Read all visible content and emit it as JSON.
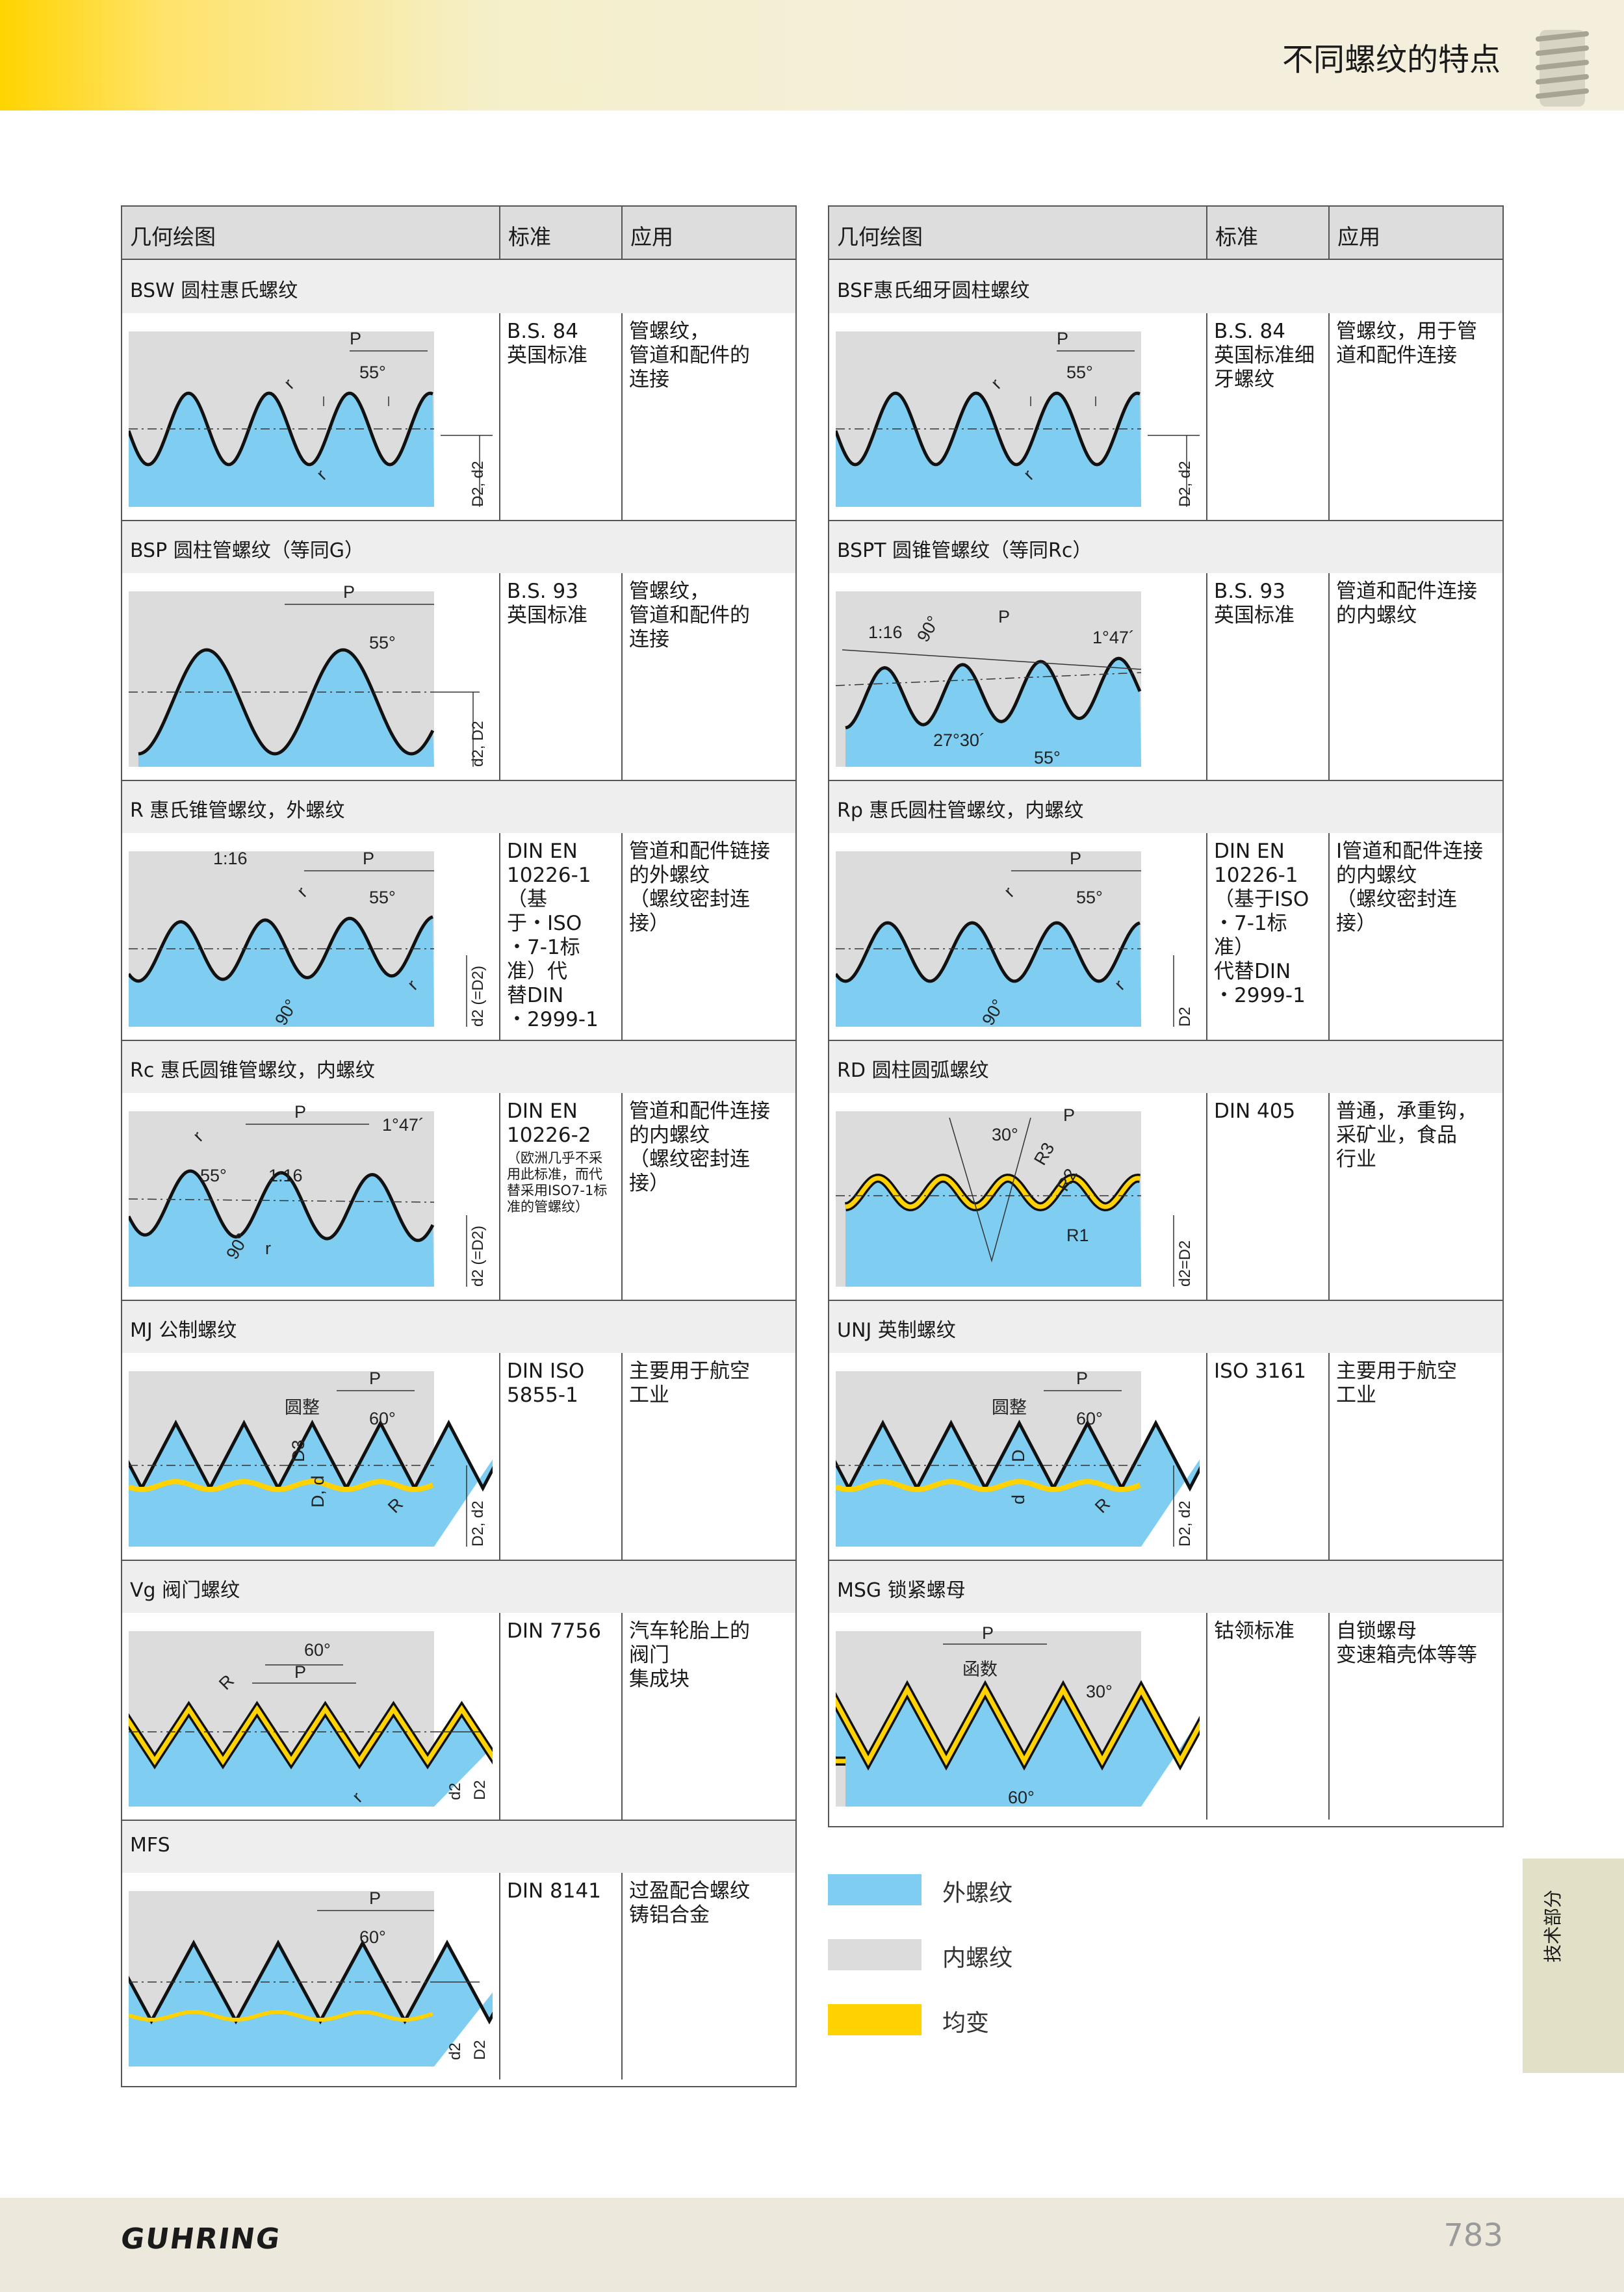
{
  "header": {
    "title": "不同螺纹的特点"
  },
  "table_columns": {
    "geometry": "几何绘图",
    "standard": "标准",
    "application": "应用"
  },
  "left_rows": [
    {
      "title": "BSW 圆柱惠氏螺纹",
      "standard": "B.S. 84\n英国标准",
      "standard_note": "",
      "application": "管螺纹，\n管道和配件的\n连接",
      "labels": {
        "p": "P",
        "angle": "55°",
        "r1": "r",
        "r2": "r",
        "d": "D2, d2"
      }
    },
    {
      "title": "BSP 圆柱管螺纹（等同G）",
      "standard": "B.S. 93\n英国标准",
      "standard_note": "",
      "application": "管螺纹，\n管道和配件的\n连接",
      "labels": {
        "p": "P",
        "angle": "55°",
        "d": "d2, D2"
      }
    },
    {
      "title": "R 惠氏锥管螺纹，外螺纹",
      "standard": "DIN EN\n10226-1\n（基\n于・ISO\n・7-1标\n准）代\n替DIN\n・2999-1",
      "standard_note": "",
      "application": "管道和配件链接\n的外螺纹\n（螺纹密封连\n接）",
      "labels": {
        "p": "P",
        "angle": "55°",
        "taper": "1:16",
        "deg90": "90°",
        "r1": "r",
        "r2": "r",
        "d": "d2 (=D2)"
      }
    },
    {
      "title": "Rc 惠氏圆锥管螺纹，内螺纹",
      "standard": "DIN EN\n10226-2",
      "standard_note": "（欧洲几乎不采\n用此标准，而代\n替采用ISO7-1标\n准的管螺纹）",
      "application": "管道和配件连接\n的内螺纹\n（螺纹密封连\n接）",
      "labels": {
        "p": "P",
        "angle": "55°",
        "taper": "1:16",
        "deg90": "90°",
        "deg147": "1°47´",
        "r1": "r",
        "r2": "r",
        "d": "d2 (=D2)"
      }
    },
    {
      "title": "MJ 公制螺纹",
      "standard": "DIN ISO\n5855-1",
      "standard_note": "",
      "application": "主要用于航空\n工业",
      "labels": {
        "p": "P",
        "angle": "60°",
        "round": "圆整",
        "d3": "D3",
        "dd": "D, d",
        "r": "R",
        "d": "D2, d2"
      }
    },
    {
      "title": "Vg 阀门螺纹",
      "standard": "DIN 7756",
      "standard_note": "",
      "application": "汽车轮胎上的\n阀门\n集成块",
      "labels": {
        "p": "P",
        "angle": "60°",
        "R": "R",
        "r": "r",
        "d2": "d2",
        "D2": "D2"
      }
    },
    {
      "title": "MFS",
      "standard": "DIN 8141",
      "standard_note": "",
      "application": "过盈配合螺纹\n铸铝合金",
      "labels": {
        "p": "P",
        "angle": "60°",
        "d2": "d2",
        "D2": "D2"
      }
    }
  ],
  "right_rows": [
    {
      "title": "BSF惠氏细牙圆柱螺纹",
      "standard": "B.S. 84\n英国标准细\n牙螺纹",
      "standard_note": "",
      "application": "管螺纹，用于管\n道和配件连接",
      "labels": {
        "p": "P",
        "angle": "55°",
        "r1": "r",
        "r2": "r",
        "d": "D2, d2"
      }
    },
    {
      "title": "BSPT 圆锥管螺纹（等同Rc）",
      "standard": "B.S. 93\n英国标准",
      "standard_note": "",
      "application": "管道和配件连接\n的内螺纹",
      "labels": {
        "p": "P",
        "taper": "1:16",
        "deg90": "90°",
        "deg147": "1°47´",
        "deg2730": "27°30´",
        "angle": "55°"
      }
    },
    {
      "title": "Rp 惠氏圆柱管螺纹，内螺纹",
      "standard": "DIN EN\n10226-1\n（基于ISO\n・7-1标\n准）\n代替DIN\n・2999-1",
      "standard_note": "",
      "application": "I管道和配件连接\n的内螺纹\n（螺纹密封连\n接）",
      "labels": {
        "p": "P",
        "angle": "55°",
        "deg90": "90°",
        "r1": "r",
        "r2": "r",
        "d": "D2"
      }
    },
    {
      "title": "RD 圆柱圆弧螺纹",
      "standard": "DIN 405",
      "standard_note": "",
      "application": "普通，承重钩，\n采矿业，食品\n行业",
      "labels": {
        "p": "P",
        "angle": "30°",
        "r1": "R1",
        "r2": "R2",
        "r3": "R3",
        "d": "d2=D2"
      }
    },
    {
      "title": "UNJ 英制螺纹",
      "standard": "ISO 3161",
      "standard_note": "",
      "application": "主要用于航空\n工业",
      "labels": {
        "p": "P",
        "angle": "60°",
        "round": "圆整",
        "D": "D",
        "d_small": "d",
        "r": "R",
        "d": "D2, d2"
      }
    },
    {
      "title": "MSG 锁紧螺母",
      "standard": "钴领标准",
      "standard_note": "",
      "application": "自锁螺母\n变速箱壳体等等",
      "labels": {
        "p": "P",
        "func": "函数",
        "deg30": "30°",
        "angle": "60°"
      }
    }
  ],
  "legend": [
    {
      "label": "外螺纹",
      "color": "#7fcdf0"
    },
    {
      "label": "内螺纹",
      "color": "#dcdcdc"
    },
    {
      "label": "均变",
      "color": "#ffd200"
    }
  ],
  "side_tab": "技术部分",
  "footer": {
    "logo": "GUHRING",
    "page": "783"
  }
}
